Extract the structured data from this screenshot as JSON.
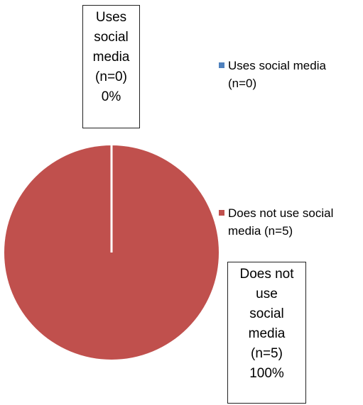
{
  "chart_data": {
    "type": "pie",
    "categories": [
      "Uses social media (n=0)",
      "Does not use social media (n=5)"
    ],
    "values": [
      0,
      5
    ],
    "percentages": [
      "0%",
      "100%"
    ],
    "colors": [
      "#4f81bd",
      "#c0504d"
    ],
    "legend_position": "right",
    "legend": [
      {
        "line1": "Uses social media",
        "line2": "(n=0)",
        "color": "#4f81bd"
      },
      {
        "line1": "Does not use social",
        "line2": "media (n=5)",
        "color": "#c0504d"
      }
    ],
    "data_labels": [
      {
        "lines": [
          "Uses",
          "social",
          "media",
          "(n=0)",
          "0%"
        ]
      },
      {
        "lines": [
          "Does not",
          "use",
          "social",
          "media",
          "(n=5)",
          "100%"
        ]
      }
    ]
  }
}
